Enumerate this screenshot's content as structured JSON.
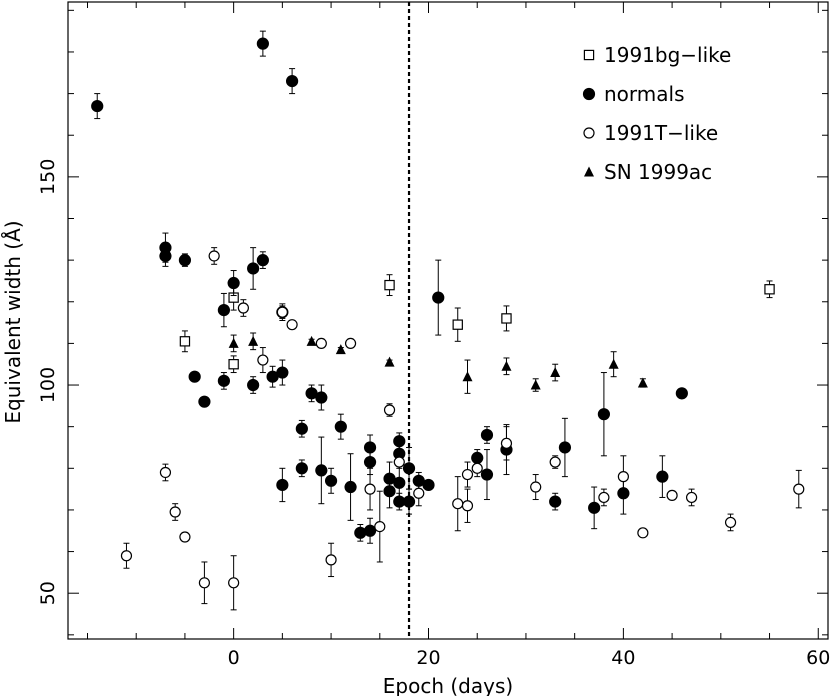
{
  "chart_data": {
    "type": "scatter",
    "title": "",
    "xlabel": "Epoch (days)",
    "ylabel": "Equivalent width (Å)",
    "xlim": [
      -17,
      61
    ],
    "ylim": [
      39,
      192
    ],
    "x_major_ticks": [
      0,
      20,
      40,
      60
    ],
    "x_tick_labels": [
      "0",
      "20",
      "40",
      "60"
    ],
    "y_major_ticks": [
      50,
      100,
      150
    ],
    "y_tick_labels": [
      "50",
      "100",
      "150"
    ],
    "x_minor_step": 5,
    "y_minor_step": 10,
    "grid": false,
    "legend_position": "top-right",
    "reference_line": {
      "x": 18,
      "style": "dotted"
    },
    "series": [
      {
        "name": "1991bg−like",
        "marker": "open-square",
        "points": [
          {
            "x": -5,
            "y": 110.5,
            "err": 2.5
          },
          {
            "x": 0,
            "y": 105,
            "err": 2
          },
          {
            "x": 0,
            "y": 121,
            "err": 3
          },
          {
            "x": 16,
            "y": 124,
            "err": 2.5
          },
          {
            "x": 23,
            "y": 114.5,
            "err": 4
          },
          {
            "x": 28,
            "y": 116,
            "err": 3
          },
          {
            "x": 55,
            "y": 123,
            "err": 2
          }
        ]
      },
      {
        "name": "normals",
        "marker": "filled-circle",
        "points": [
          {
            "x": -14,
            "y": 167,
            "err": 3
          },
          {
            "x": 3,
            "y": 182,
            "err": 3
          },
          {
            "x": 6,
            "y": 173,
            "err": 3
          },
          {
            "x": -7,
            "y": 133,
            "err": 3.5
          },
          {
            "x": -7,
            "y": 131,
            "err": 2.5
          },
          {
            "x": -5,
            "y": 130,
            "err": 1.5
          },
          {
            "x": 2,
            "y": 128,
            "err": 5
          },
          {
            "x": 3,
            "y": 130,
            "err": 2
          },
          {
            "x": 0,
            "y": 124.5,
            "err": 3
          },
          {
            "x": -1,
            "y": 118,
            "err": 4
          },
          {
            "x": 5,
            "y": 117.5,
            "err": 2
          },
          {
            "x": -4,
            "y": 102,
            "err": 1
          },
          {
            "x": -1,
            "y": 101,
            "err": 2
          },
          {
            "x": -3,
            "y": 96,
            "err": 1
          },
          {
            "x": 2,
            "y": 100,
            "err": 2
          },
          {
            "x": 4,
            "y": 102,
            "err": 2.5
          },
          {
            "x": 5,
            "y": 103,
            "err": 3
          },
          {
            "x": 8,
            "y": 98,
            "err": 2
          },
          {
            "x": 9,
            "y": 97,
            "err": 3
          },
          {
            "x": 7,
            "y": 89.5,
            "err": 2
          },
          {
            "x": 11,
            "y": 90,
            "err": 3
          },
          {
            "x": 14,
            "y": 85,
            "err": 3
          },
          {
            "x": 14,
            "y": 81.5,
            "err": 3
          },
          {
            "x": 17,
            "y": 86.5,
            "err": 2
          },
          {
            "x": 17,
            "y": 83.5,
            "err": 2.5
          },
          {
            "x": 18,
            "y": 80,
            "err": 5
          },
          {
            "x": 17,
            "y": 76.5,
            "err": 5
          },
          {
            "x": 16,
            "y": 74.5,
            "err": 4
          },
          {
            "x": 16,
            "y": 77.5,
            "err": 4
          },
          {
            "x": 17,
            "y": 72,
            "err": 2
          },
          {
            "x": 18,
            "y": 72,
            "err": 3
          },
          {
            "x": 19,
            "y": 77,
            "err": 2
          },
          {
            "x": 20,
            "y": 76,
            "err": 1
          },
          {
            "x": 5,
            "y": 76,
            "err": 4
          },
          {
            "x": 7,
            "y": 80,
            "err": 2
          },
          {
            "x": 9,
            "y": 79.5,
            "err": 8
          },
          {
            "x": 10,
            "y": 77,
            "err": 3
          },
          {
            "x": 12,
            "y": 75.5,
            "err": 8
          },
          {
            "x": 13,
            "y": 64.5,
            "err": 2
          },
          {
            "x": 14,
            "y": 65,
            "err": 3
          },
          {
            "x": 21,
            "y": 121,
            "err": 9
          },
          {
            "x": 25,
            "y": 82.5,
            "err": 2
          },
          {
            "x": 26,
            "y": 88,
            "err": 2
          },
          {
            "x": 26,
            "y": 78.5,
            "err": 6
          },
          {
            "x": 28,
            "y": 84.5,
            "err": 6
          },
          {
            "x": 33,
            "y": 72,
            "err": 2
          },
          {
            "x": 34,
            "y": 85,
            "err": 7
          },
          {
            "x": 37,
            "y": 70.5,
            "err": 5
          },
          {
            "x": 38,
            "y": 93,
            "err": 10
          },
          {
            "x": 40,
            "y": 74,
            "err": 5
          },
          {
            "x": 44,
            "y": 78,
            "err": 5
          },
          {
            "x": 46,
            "y": 98,
            "err": 0.5
          }
        ]
      },
      {
        "name": "1991T−like",
        "marker": "open-circle",
        "points": [
          {
            "x": -11,
            "y": 59,
            "err": 3
          },
          {
            "x": -7,
            "y": 79,
            "err": 2
          },
          {
            "x": -6,
            "y": 69.5,
            "err": 2
          },
          {
            "x": -5,
            "y": 63.5,
            "err": 1
          },
          {
            "x": -3,
            "y": 52.5,
            "err": 5
          },
          {
            "x": -2,
            "y": 131,
            "err": 2
          },
          {
            "x": 0,
            "y": 52.5,
            "err": 6.5
          },
          {
            "x": 1,
            "y": 118.5,
            "err": 2
          },
          {
            "x": 3,
            "y": 106,
            "err": 3
          },
          {
            "x": 5,
            "y": 117.5,
            "err": 1.5
          },
          {
            "x": 6,
            "y": 114.5,
            "err": 1
          },
          {
            "x": 9,
            "y": 110,
            "err": 1
          },
          {
            "x": 12,
            "y": 110,
            "err": 1
          },
          {
            "x": 10,
            "y": 58,
            "err": 4
          },
          {
            "x": 14,
            "y": 75,
            "err": 5
          },
          {
            "x": 15,
            "y": 66,
            "err": 8.5
          },
          {
            "x": 16,
            "y": 94,
            "err": 1.5
          },
          {
            "x": 17,
            "y": 81.5,
            "err": 1.5
          },
          {
            "x": 19,
            "y": 74,
            "err": 3
          },
          {
            "x": 23,
            "y": 71.5,
            "err": 6.5
          },
          {
            "x": 24,
            "y": 78.5,
            "err": 3
          },
          {
            "x": 24,
            "y": 71,
            "err": 4
          },
          {
            "x": 25,
            "y": 80,
            "err": 2
          },
          {
            "x": 28,
            "y": 86,
            "err": 4
          },
          {
            "x": 31,
            "y": 75.5,
            "err": 3
          },
          {
            "x": 33,
            "y": 81.5,
            "err": 1.5
          },
          {
            "x": 38,
            "y": 73,
            "err": 2
          },
          {
            "x": 40,
            "y": 78,
            "err": 5
          },
          {
            "x": 42,
            "y": 64.5,
            "err": 0.5
          },
          {
            "x": 45,
            "y": 73.5,
            "err": 1
          },
          {
            "x": 47,
            "y": 73,
            "err": 2
          },
          {
            "x": 51,
            "y": 67,
            "err": 2
          },
          {
            "x": 58,
            "y": 75,
            "err": 4.5
          }
        ]
      },
      {
        "name": "SN 1999ac",
        "marker": "filled-triangle",
        "points": [
          {
            "x": 0,
            "y": 110,
            "err": 2
          },
          {
            "x": 2,
            "y": 110.5,
            "err": 2
          },
          {
            "x": 8,
            "y": 110.5,
            "err": 0.5
          },
          {
            "x": 11,
            "y": 108.5,
            "err": 0.5
          },
          {
            "x": 16,
            "y": 105.5,
            "err": 0.5
          },
          {
            "x": 24,
            "y": 102,
            "err": 4
          },
          {
            "x": 28,
            "y": 104.5,
            "err": 2
          },
          {
            "x": 31,
            "y": 100,
            "err": 1.5
          },
          {
            "x": 33,
            "y": 103,
            "err": 2
          },
          {
            "x": 39,
            "y": 105,
            "err": 3
          },
          {
            "x": 42,
            "y": 100.5,
            "err": 1
          }
        ]
      }
    ]
  }
}
